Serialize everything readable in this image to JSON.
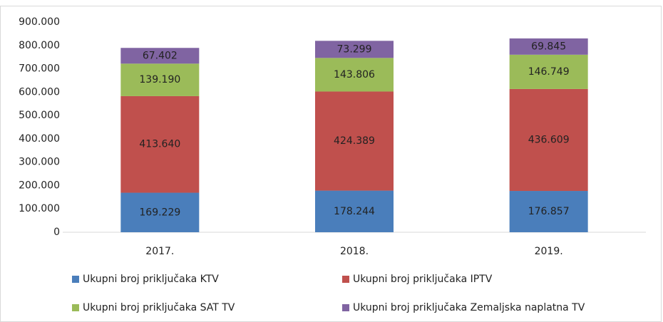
{
  "chart_data": {
    "type": "stacked_bar",
    "categories": [
      "2017.",
      "2018.",
      "2019."
    ],
    "series": [
      {
        "name": "Ukupni broj priključaka KTV",
        "color": "#4a7ebb",
        "values": [
          169229,
          178244,
          176857
        ],
        "value_labels": [
          "169.229",
          "178.244",
          "176.857"
        ]
      },
      {
        "name": "Ukupni broj priključaka IPTV",
        "color": "#c0504d",
        "values": [
          413640,
          424389,
          436609
        ],
        "value_labels": [
          "413.640",
          "424.389",
          "436.609"
        ]
      },
      {
        "name": "Ukupni broj priključaka SAT TV",
        "color": "#9bbb59",
        "values": [
          139190,
          143806,
          146749
        ],
        "value_labels": [
          "139.190",
          "143.806",
          "146.749"
        ]
      },
      {
        "name": "Ukupni broj priključaka Zemaljska naplatna TV",
        "color": "#8064a2",
        "values": [
          67402,
          73299,
          69845
        ],
        "value_labels": [
          "67.402",
          "73.299",
          "69.845"
        ]
      }
    ],
    "ylim": [
      0,
      900000
    ],
    "yticks": [
      0,
      {
        "value": 100000,
        "label": "100.000"
      },
      {
        "value": 200000,
        "label": "200.000"
      },
      {
        "value": 300000,
        "label": "300.000"
      },
      {
        "value": 400000,
        "label": "400.000"
      },
      {
        "value": 500000,
        "label": "500.000"
      },
      {
        "value": 600000,
        "label": "600.000"
      },
      {
        "value": 700000,
        "label": "700.000"
      },
      {
        "value": 800000,
        "label": "800.000"
      },
      {
        "value": 900000,
        "label": "900.000"
      }
    ],
    "grid": false
  }
}
